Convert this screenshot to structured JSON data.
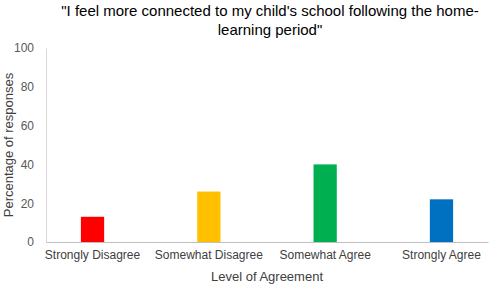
{
  "chart_data": {
    "type": "bar",
    "title": [
      "\"I feel more connected to my child's school following the home-",
      "learning period\""
    ],
    "x_label": "Level of Agreement",
    "y_label": "Percentage of responses",
    "categories": [
      "Strongly Disagree",
      "Somewhat Disagree",
      "Somewhat Agree",
      "Strongly Agree"
    ],
    "values": [
      13,
      26,
      40,
      22
    ],
    "colors": [
      "#ff0000",
      "#ffc000",
      "#00b050",
      "#0070c0"
    ],
    "ylim": [
      0,
      100
    ],
    "yticks": [
      0,
      20,
      40,
      60,
      80,
      100
    ],
    "grid": false
  }
}
